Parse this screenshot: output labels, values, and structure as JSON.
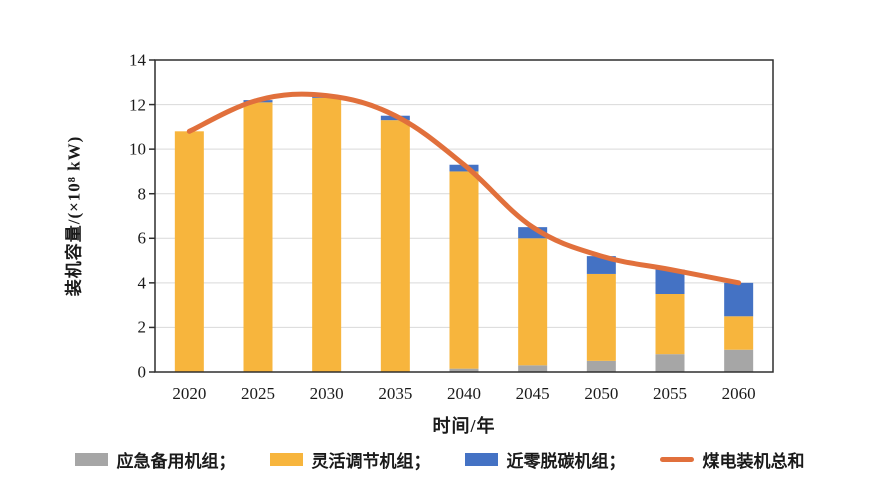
{
  "figure": {
    "background": "#ffffff",
    "axis_color": "#2f2f2f",
    "grid_color": "#d9d9d9"
  },
  "chart_data": {
    "type": "bar",
    "combo": "stacked-bar-with-line",
    "title": "",
    "xlabel": "时间/年",
    "ylabel": "装机容量/(×10⁸ kW)",
    "categories": [
      "2020",
      "2025",
      "2030",
      "2035",
      "2040",
      "2045",
      "2050",
      "2055",
      "2060"
    ],
    "series": [
      {
        "name": "应急备用机组",
        "type": "bar",
        "color": "#a6a6a6",
        "values": [
          0,
          0,
          0,
          0,
          0.15,
          0.3,
          0.5,
          0.8,
          1.0
        ]
      },
      {
        "name": "灵活调节机组",
        "type": "bar",
        "color": "#f7b53d",
        "values": [
          10.8,
          12.1,
          12.3,
          11.3,
          8.85,
          5.7,
          3.9,
          2.7,
          1.5
        ]
      },
      {
        "name": "近零脱碳机组",
        "type": "bar",
        "color": "#4472c4",
        "values": [
          0,
          0.1,
          0.1,
          0.2,
          0.3,
          0.5,
          0.8,
          1.1,
          1.5
        ]
      },
      {
        "name": "煤电装机总和",
        "type": "line",
        "color": "#e1703c",
        "values": [
          10.8,
          12.2,
          12.4,
          11.5,
          9.3,
          6.5,
          5.2,
          4.6,
          4.0
        ]
      }
    ],
    "ylim": [
      0,
      14
    ],
    "y_ticks": [
      0,
      2,
      4,
      6,
      8,
      10,
      12,
      14
    ],
    "grid": true,
    "legend_position": "bottom"
  },
  "legend": {
    "items": [
      {
        "label": "应急备用机组；",
        "swatch": "rect",
        "color": "#a6a6a6"
      },
      {
        "label": "灵活调节机组；",
        "swatch": "rect",
        "color": "#f7b53d"
      },
      {
        "label": "近零脱碳机组；",
        "swatch": "rect",
        "color": "#4472c4"
      },
      {
        "label": "煤电装机总和",
        "swatch": "line",
        "color": "#e1703c"
      }
    ]
  }
}
